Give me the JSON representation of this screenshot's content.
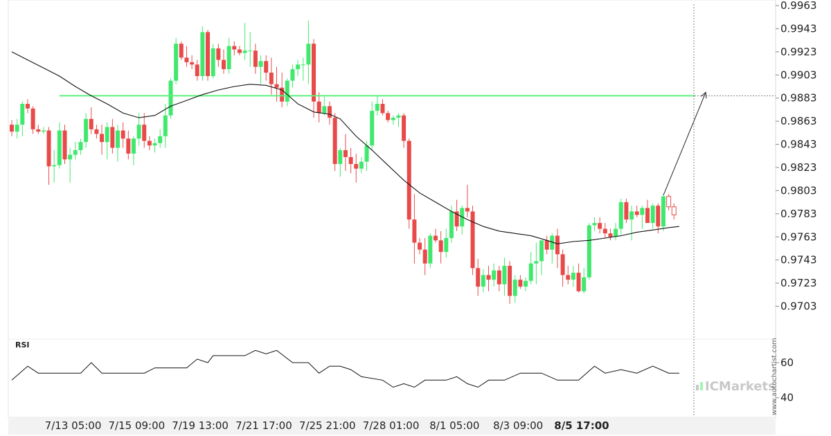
{
  "chart_data": {
    "type": "candlestick",
    "title": "",
    "xlabel": "",
    "ylabel": "",
    "ylim": [
      0.9683,
      0.9963
    ],
    "y_ticks": [
      "0.9963",
      "0.9943",
      "0.9923",
      "0.9903",
      "0.9883",
      "0.9863",
      "0.9843",
      "0.9823",
      "0.9803",
      "0.9783",
      "0.9763",
      "0.9743",
      "0.9723",
      "0.9703"
    ],
    "x_ticks": [
      {
        "label": "7/13 05:00",
        "index": 7
      },
      {
        "label": "7/15 09:00",
        "index": 19
      },
      {
        "label": "7/19 13:00",
        "index": 31
      },
      {
        "label": "7/21 17:00",
        "index": 43
      },
      {
        "label": "7/25 21:00",
        "index": 55
      },
      {
        "label": "7/28 01:00",
        "index": 67
      },
      {
        "label": "8/1 05:00",
        "index": 79
      },
      {
        "label": "8/3 09:00",
        "index": 91
      },
      {
        "label": "8/5 17:00",
        "index": 103,
        "bold": true
      }
    ],
    "candles": [
      [
        0.986,
        0.9864,
        0.985,
        0.9854
      ],
      [
        0.9854,
        0.9865,
        0.9848,
        0.986
      ],
      [
        0.986,
        0.988,
        0.985,
        0.9878
      ],
      [
        0.9878,
        0.9882,
        0.987,
        0.9874
      ],
      [
        0.9874,
        0.9876,
        0.9852,
        0.9856
      ],
      [
        0.9856,
        0.986,
        0.9852,
        0.9854
      ],
      [
        0.9854,
        0.9858,
        0.9852,
        0.9855
      ],
      [
        0.9855,
        0.9858,
        0.9808,
        0.9824
      ],
      [
        0.9824,
        0.9838,
        0.981,
        0.9825
      ],
      [
        0.9825,
        0.9862,
        0.9822,
        0.9855
      ],
      [
        0.9855,
        0.986,
        0.9826,
        0.983
      ],
      [
        0.983,
        0.984,
        0.981,
        0.9834
      ],
      [
        0.9834,
        0.9845,
        0.983,
        0.9838
      ],
      [
        0.9838,
        0.9848,
        0.9834,
        0.9845
      ],
      [
        0.9845,
        0.987,
        0.984,
        0.9865
      ],
      [
        0.9865,
        0.9875,
        0.9852,
        0.9856
      ],
      [
        0.9856,
        0.986,
        0.9848,
        0.9852
      ],
      [
        0.9852,
        0.986,
        0.9834,
        0.9845
      ],
      [
        0.9845,
        0.9862,
        0.983,
        0.9858
      ],
      [
        0.9858,
        0.9865,
        0.9835,
        0.984
      ],
      [
        0.984,
        0.986,
        0.9828,
        0.9855
      ],
      [
        0.9855,
        0.9862,
        0.984,
        0.9848
      ],
      [
        0.9848,
        0.9855,
        0.983,
        0.9835
      ],
      [
        0.9835,
        0.985,
        0.9825,
        0.9848
      ],
      [
        0.9848,
        0.987,
        0.9842,
        0.986
      ],
      [
        0.986,
        0.987,
        0.984,
        0.9846
      ],
      [
        0.9846,
        0.985,
        0.9838,
        0.9842
      ],
      [
        0.9842,
        0.9848,
        0.9836,
        0.9844
      ],
      [
        0.9844,
        0.9856,
        0.984,
        0.985
      ],
      [
        0.985,
        0.9878,
        0.984,
        0.9868
      ],
      [
        0.9868,
        0.99,
        0.9865,
        0.9898
      ],
      [
        0.9898,
        0.9935,
        0.9895,
        0.993
      ],
      [
        0.993,
        0.9932,
        0.9916,
        0.9918
      ],
      [
        0.9918,
        0.9928,
        0.991,
        0.9914
      ],
      [
        0.9914,
        0.992,
        0.9908,
        0.9912
      ],
      [
        0.9912,
        0.9916,
        0.9898,
        0.9902
      ],
      [
        0.9902,
        0.9945,
        0.9898,
        0.994
      ],
      [
        0.994,
        0.9942,
        0.9898,
        0.9902
      ],
      [
        0.9902,
        0.993,
        0.99,
        0.9926
      ],
      [
        0.9926,
        0.993,
        0.991,
        0.9916
      ],
      [
        0.9916,
        0.9925,
        0.9904,
        0.9908
      ],
      [
        0.9908,
        0.9935,
        0.9904,
        0.9928
      ],
      [
        0.9928,
        0.9932,
        0.992,
        0.9925
      ],
      [
        0.9925,
        0.9928,
        0.992,
        0.9922
      ],
      [
        0.9922,
        0.9948,
        0.9916,
        0.9924
      ],
      [
        0.9924,
        0.994,
        0.991,
        0.9924
      ],
      [
        0.9924,
        0.993,
        0.9904,
        0.991
      ],
      [
        0.991,
        0.992,
        0.9895,
        0.9915
      ],
      [
        0.9915,
        0.992,
        0.9898,
        0.9905
      ],
      [
        0.9905,
        0.9918,
        0.9886,
        0.9895
      ],
      [
        0.9895,
        0.991,
        0.988,
        0.9892
      ],
      [
        0.9892,
        0.9905,
        0.9875,
        0.988
      ],
      [
        0.988,
        0.99,
        0.9876,
        0.9898
      ],
      [
        0.9898,
        0.9912,
        0.9892,
        0.9908
      ],
      [
        0.9908,
        0.9916,
        0.9902,
        0.9912
      ],
      [
        0.9912,
        0.9918,
        0.9898,
        0.9912
      ],
      [
        0.9912,
        0.995,
        0.9895,
        0.993
      ],
      [
        0.993,
        0.9934,
        0.9866,
        0.988
      ],
      [
        0.988,
        0.9888,
        0.9862,
        0.987
      ],
      [
        0.987,
        0.9884,
        0.9868,
        0.9876
      ],
      [
        0.9876,
        0.988,
        0.986,
        0.9866
      ],
      [
        0.9866,
        0.987,
        0.982,
        0.9826
      ],
      [
        0.9826,
        0.984,
        0.9815,
        0.9838
      ],
      [
        0.9838,
        0.9852,
        0.982,
        0.9832
      ],
      [
        0.9832,
        0.984,
        0.9818,
        0.9826
      ],
      [
        0.9826,
        0.9835,
        0.981,
        0.9822
      ],
      [
        0.9822,
        0.9832,
        0.9818,
        0.9828
      ],
      [
        0.9828,
        0.9846,
        0.982,
        0.9842
      ],
      [
        0.9842,
        0.988,
        0.9838,
        0.9872
      ],
      [
        0.9872,
        0.9885,
        0.9868,
        0.9878
      ],
      [
        0.9878,
        0.9882,
        0.9868,
        0.987
      ],
      [
        0.987,
        0.9872,
        0.9862,
        0.9864
      ],
      [
        0.9864,
        0.9868,
        0.986,
        0.9866
      ],
      [
        0.9866,
        0.987,
        0.9858,
        0.9868
      ],
      [
        0.9868,
        0.987,
        0.984,
        0.9846
      ],
      [
        0.9846,
        0.9848,
        0.977,
        0.9778
      ],
      [
        0.9778,
        0.98,
        0.974,
        0.9758
      ],
      [
        0.9758,
        0.9762,
        0.9748,
        0.9752
      ],
      [
        0.9752,
        0.9762,
        0.973,
        0.974
      ],
      [
        0.974,
        0.9766,
        0.9736,
        0.9764
      ],
      [
        0.9764,
        0.977,
        0.9758,
        0.976
      ],
      [
        0.976,
        0.9768,
        0.974,
        0.975
      ],
      [
        0.975,
        0.977,
        0.9745,
        0.9762
      ],
      [
        0.9762,
        0.979,
        0.9758,
        0.9785
      ],
      [
        0.9785,
        0.9795,
        0.9768,
        0.9772
      ],
      [
        0.9772,
        0.979,
        0.9765,
        0.9788
      ],
      [
        0.9788,
        0.9808,
        0.978,
        0.9785
      ],
      [
        0.9785,
        0.979,
        0.973,
        0.9736
      ],
      [
        0.9736,
        0.9744,
        0.9712,
        0.972
      ],
      [
        0.972,
        0.9735,
        0.9715,
        0.973
      ],
      [
        0.973,
        0.9738,
        0.9716,
        0.9726
      ],
      [
        0.9726,
        0.974,
        0.972,
        0.9734
      ],
      [
        0.9734,
        0.9738,
        0.9716,
        0.9722
      ],
      [
        0.9722,
        0.9745,
        0.9712,
        0.9738
      ],
      [
        0.9738,
        0.9742,
        0.9705,
        0.9712
      ],
      [
        0.9712,
        0.973,
        0.9706,
        0.9726
      ],
      [
        0.9726,
        0.973,
        0.9718,
        0.972
      ],
      [
        0.972,
        0.9728,
        0.9716,
        0.9725
      ],
      [
        0.9725,
        0.975,
        0.9722,
        0.974
      ],
      [
        0.974,
        0.9758,
        0.9722,
        0.9742
      ]
    ],
    "candles_tail": [
      [
        0.9742,
        0.9758,
        0.973,
        0.976
      ],
      [
        0.976,
        0.9764,
        0.9748,
        0.9752
      ],
      [
        0.9752,
        0.9766,
        0.974,
        0.9764
      ],
      [
        0.9764,
        0.977,
        0.9736,
        0.9748
      ],
      [
        0.9748,
        0.9752,
        0.972,
        0.973
      ],
      [
        0.973,
        0.9738,
        0.9722,
        0.9726
      ],
      [
        0.9726,
        0.9738,
        0.972,
        0.9732
      ],
      [
        0.9732,
        0.974,
        0.9715,
        0.9716
      ],
      [
        0.9716,
        0.9736,
        0.9714,
        0.9728
      ],
      [
        0.9728,
        0.9775,
        0.9726,
        0.9773
      ],
      [
        0.9773,
        0.978,
        0.9768,
        0.9775
      ],
      [
        0.9775,
        0.978,
        0.9766,
        0.977
      ],
      [
        0.977,
        0.9775,
        0.9762,
        0.9766
      ],
      [
        0.9766,
        0.977,
        0.976,
        0.9763
      ],
      [
        0.9763,
        0.9775,
        0.976,
        0.977
      ],
      [
        0.977,
        0.9796,
        0.9765,
        0.9793
      ],
      [
        0.9793,
        0.9796,
        0.9775,
        0.9778
      ],
      [
        0.9778,
        0.979,
        0.976,
        0.9785
      ],
      [
        0.9785,
        0.979,
        0.978,
        0.9782
      ],
      [
        0.9782,
        0.979,
        0.977,
        0.9788
      ],
      [
        0.9788,
        0.9795,
        0.9776,
        0.9775
      ],
      [
        0.9775,
        0.9792,
        0.977,
        0.979
      ],
      [
        0.979,
        0.9792,
        0.9766,
        0.9772
      ],
      [
        0.9772,
        0.98,
        0.9768,
        0.9798
      ],
      [
        0.9798,
        0.98,
        0.9786,
        0.9789
      ],
      [
        0.9789,
        0.9792,
        0.9778,
        0.9782
      ]
    ],
    "moving_average": [
      [
        0,
        0.9923
      ],
      [
        3,
        0.9916
      ],
      [
        6,
        0.9909
      ],
      [
        9,
        0.9902
      ],
      [
        12,
        0.9893
      ],
      [
        15,
        0.9885
      ],
      [
        18,
        0.9878
      ],
      [
        21,
        0.987
      ],
      [
        24,
        0.9866
      ],
      [
        27,
        0.9868
      ],
      [
        30,
        0.9876
      ],
      [
        33,
        0.9881
      ],
      [
        36,
        0.9886
      ],
      [
        39,
        0.989
      ],
      [
        42,
        0.9893
      ],
      [
        45,
        0.9895
      ],
      [
        48,
        0.9894
      ],
      [
        51,
        0.989
      ],
      [
        54,
        0.9878
      ],
      [
        57,
        0.9871
      ],
      [
        60,
        0.9869
      ],
      [
        62,
        0.9865
      ],
      [
        65,
        0.985
      ],
      [
        68,
        0.9838
      ],
      [
        71,
        0.9825
      ],
      [
        74,
        0.9812
      ],
      [
        77,
        0.9801
      ],
      [
        80,
        0.9793
      ],
      [
        83,
        0.9785
      ],
      [
        86,
        0.9778
      ],
      [
        89,
        0.9772
      ],
      [
        92,
        0.9768
      ],
      [
        95,
        0.9766
      ],
      [
        98,
        0.9764
      ],
      [
        101,
        0.976
      ],
      [
        103,
        0.9757
      ],
      [
        106,
        0.9759
      ],
      [
        109,
        0.976
      ],
      [
        112,
        0.9762
      ],
      [
        115,
        0.9764
      ],
      [
        118,
        0.9767
      ],
      [
        121,
        0.9769
      ],
      [
        124,
        0.9771
      ],
      [
        126,
        0.9772
      ]
    ],
    "resistance_level": 0.9885,
    "resistance_start_index": 9,
    "forecast": {
      "from": [
        123,
        0.9799
      ],
      "to": [
        131,
        0.9888
      ]
    },
    "rsi": {
      "label": "RSI",
      "ylim": [
        30,
        75
      ],
      "ticks": [
        60,
        40
      ],
      "values": [
        [
          0,
          50
        ],
        [
          3,
          58
        ],
        [
          5,
          54
        ],
        [
          13,
          54
        ],
        [
          15,
          60
        ],
        [
          17,
          54
        ],
        [
          25,
          54
        ],
        [
          27,
          57
        ],
        [
          33,
          57
        ],
        [
          35,
          62
        ],
        [
          37,
          60
        ],
        [
          38,
          64
        ],
        [
          44,
          64
        ],
        [
          46,
          67
        ],
        [
          48,
          65
        ],
        [
          50,
          67
        ],
        [
          53,
          60
        ],
        [
          56,
          60
        ],
        [
          58,
          54
        ],
        [
          60,
          58
        ],
        [
          62,
          58
        ],
        [
          64,
          56
        ],
        [
          66,
          52
        ],
        [
          70,
          50
        ],
        [
          72,
          46
        ],
        [
          74,
          48
        ],
        [
          76,
          46
        ],
        [
          78,
          50
        ],
        [
          82,
          50
        ],
        [
          84,
          52
        ],
        [
          86,
          48
        ],
        [
          88,
          46
        ],
        [
          90,
          50
        ],
        [
          93,
          50
        ],
        [
          96,
          54
        ],
        [
          100,
          54
        ],
        [
          103,
          50
        ],
        [
          107,
          50
        ],
        [
          110,
          58
        ],
        [
          112,
          54
        ],
        [
          115,
          56
        ],
        [
          118,
          54
        ],
        [
          121,
          58
        ],
        [
          124,
          54
        ],
        [
          126,
          54
        ]
      ]
    },
    "watermark": {
      "brand": "ICMarkets",
      "side": "www.autochartist.com"
    }
  }
}
